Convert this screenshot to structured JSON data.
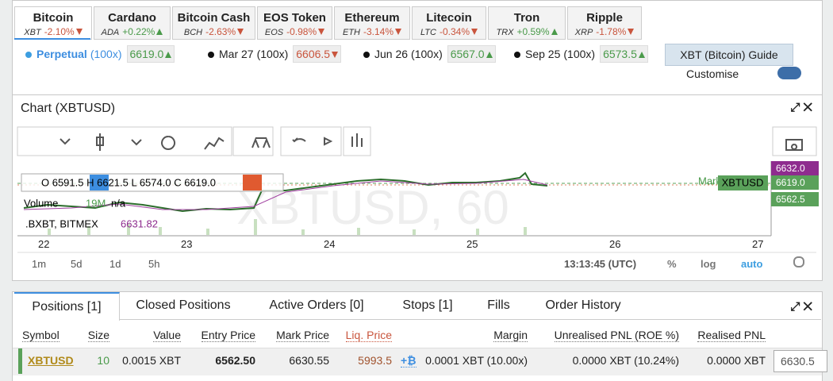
{
  "markets": [
    {
      "name": "Bitcoin",
      "symbol": "XBT",
      "change": "-2.10%"
    },
    {
      "name": "Cardano",
      "symbol": "ADA",
      "change": "+0.22%"
    },
    {
      "name": "Bitcoin Cash",
      "symbol": "BCH",
      "change": "-2.63%"
    },
    {
      "name": "EOS Token",
      "symbol": "EOS",
      "change": "-0.98%"
    },
    {
      "name": "Ethereum",
      "symbol": "ETH",
      "change": "-3.14%"
    },
    {
      "name": "Litecoin",
      "symbol": "LTC",
      "change": "-0.34%"
    },
    {
      "name": "Tron",
      "symbol": "TRX",
      "change": "+0.59%"
    },
    {
      "name": "Ripple",
      "symbol": "XRP",
      "change": "-1.78%"
    }
  ],
  "contracts": [
    {
      "name": "Perpetual",
      "leverage": "(100x)",
      "price": "6619.0"
    },
    {
      "name": "Mar 27",
      "leverage": "(100x)",
      "price": "6606.5"
    },
    {
      "name": "Jun 26",
      "leverage": "(100x)",
      "price": "6567.0"
    },
    {
      "name": "Sep 25",
      "leverage": "(100x)",
      "price": "6573.5"
    }
  ],
  "guide": "XBT (Bitcoin) Guide",
  "customise": "Customise",
  "chart": {
    "title": "Chart (XBTUSD)",
    "legend": "O 6591.5 H 6621.5 L 6574.0 C 6619.0",
    "volume_label": "Volume",
    "volume_value": "19M",
    "volume_na": "n/a",
    "index_label": ".BXBT, BITMEX",
    "index_value": "6631.82",
    "watermark": "XBTUSD, 60",
    "price_labels": [
      "6632.0",
      "6619.0",
      "6562.5"
    ],
    "mark_label": "Mark",
    "symbol_label": "XBTUSD",
    "x_labels": [
      "22",
      "23",
      "24",
      "25",
      "26",
      "27"
    ],
    "intervals": [
      "1m",
      "5d",
      "1d",
      "5h"
    ],
    "time": "13:13:45 (UTC)",
    "options": [
      "%",
      "log",
      "auto"
    ]
  },
  "positions": {
    "tabs": [
      "Positions [1]",
      "Closed Positions",
      "Active Orders [0]",
      "Stops [1]",
      "Fills",
      "Order History"
    ],
    "columns": [
      "Symbol",
      "Size",
      "Value",
      "Entry Price",
      "Mark Price",
      "Liq. Price",
      "Margin",
      "Unrealised PNL (ROE %)",
      "Realised PNL"
    ],
    "row": [
      "XBTUSD",
      "10",
      "0.0015 XBT",
      "6562.50",
      "6630.55",
      "5993.5",
      "0.0001 XBT (10.00x)",
      "0.0000 XBT (10.24%)",
      "0.0000 XBT"
    ],
    "add_margin": "+₿",
    "input": "6630.5"
  }
}
